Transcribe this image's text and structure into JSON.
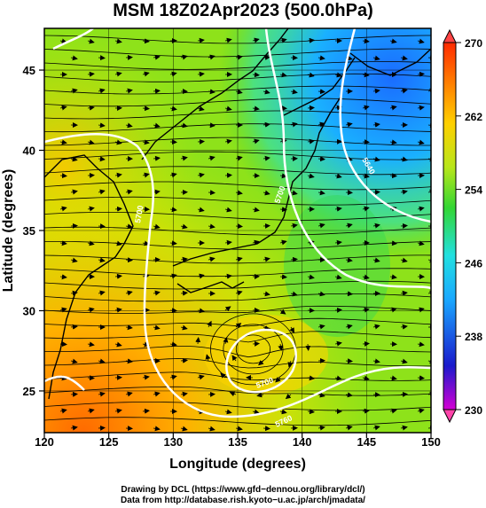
{
  "title": "MSM 18Z02Apr2023 (500.0hPa)",
  "x_axis": {
    "label": "Longitude (degrees)",
    "ticks": [
      "120",
      "125",
      "130",
      "135",
      "140",
      "145",
      "150"
    ],
    "range": [
      120,
      150
    ]
  },
  "y_axis": {
    "label": "Latitude  (degrees)",
    "ticks": [
      "25",
      "30",
      "35",
      "40",
      "45"
    ],
    "range": [
      22.4,
      47.6
    ]
  },
  "colorbar": {
    "ticks": [
      "270",
      "262",
      "254",
      "246",
      "238",
      "230"
    ],
    "range": [
      230,
      270
    ],
    "colormap": [
      "#d400d4",
      "#1a1acc",
      "#1aa8ff",
      "#22e0e0",
      "#33d633",
      "#b8e61a",
      "#ffd000",
      "#ff7700",
      "#ff2a00"
    ],
    "over_color": "#ff4444",
    "under_color": "#ff44aa"
  },
  "contour_labels": [
    "5700",
    "5700",
    "5700",
    "5640",
    "5640",
    "5640",
    "5700",
    "5700",
    "5760"
  ],
  "credits": {
    "line1": "Drawing by DCL (https://www.gfd−dennou.org/library/dcl/)",
    "line2": "Data from http://database.rish.kyoto−u.ac.jp/arch/jmadata/"
  }
}
